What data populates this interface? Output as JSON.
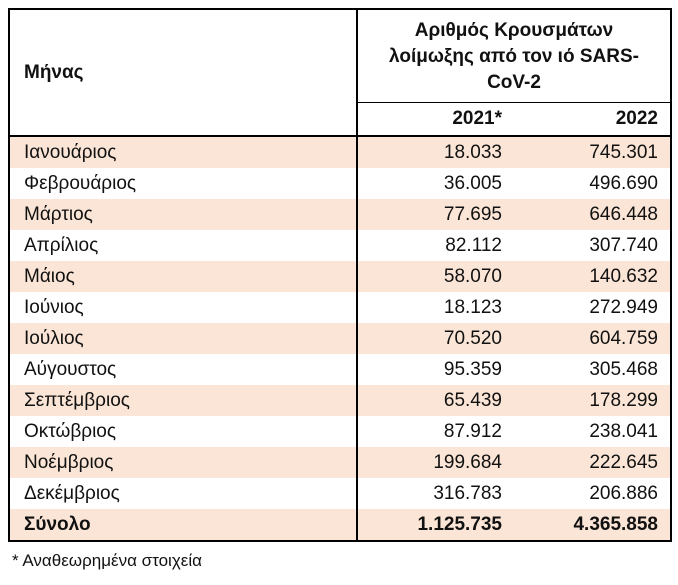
{
  "table": {
    "header": {
      "month_label": "Μήνας",
      "group_label": "Αριθμός Κρουσμάτων λοίμωξης από τον ιό SARS-CoV-2",
      "year_labels": [
        "2021*",
        "2022"
      ]
    },
    "rows": [
      {
        "month": "Ιανουάριος",
        "y2021": "18.033",
        "y2022": "745.301"
      },
      {
        "month": "Φεβρουάριος",
        "y2021": "36.005",
        "y2022": "496.690"
      },
      {
        "month": "Μάρτιος",
        "y2021": "77.695",
        "y2022": "646.448"
      },
      {
        "month": "Απρίλιος",
        "y2021": "82.112",
        "y2022": "307.740"
      },
      {
        "month": "Μάιος",
        "y2021": "58.070",
        "y2022": "140.632"
      },
      {
        "month": "Ιούνιος",
        "y2021": "18.123",
        "y2022": "272.949"
      },
      {
        "month": "Ιούλιος",
        "y2021": "70.520",
        "y2022": "604.759"
      },
      {
        "month": "Αύγουστος",
        "y2021": "95.359",
        "y2022": "305.468"
      },
      {
        "month": "Σεπτέμβριος",
        "y2021": "65.439",
        "y2022": "178.299"
      },
      {
        "month": "Οκτώβριος",
        "y2021": "87.912",
        "y2022": "238.041"
      },
      {
        "month": "Νοέμβριος",
        "y2021": "199.684",
        "y2022": "222.645"
      },
      {
        "month": "Δεκέμβριος",
        "y2021": "316.783",
        "y2022": "206.886"
      }
    ],
    "total": {
      "label": "Σύνολο",
      "y2021": "1.125.735",
      "y2022": "4.365.858"
    }
  },
  "footnote": "* Αναθεωρημένα στοιχεία",
  "colors": {
    "stripe": "#FBE5D6",
    "border": "#000000",
    "text": "#111111"
  }
}
